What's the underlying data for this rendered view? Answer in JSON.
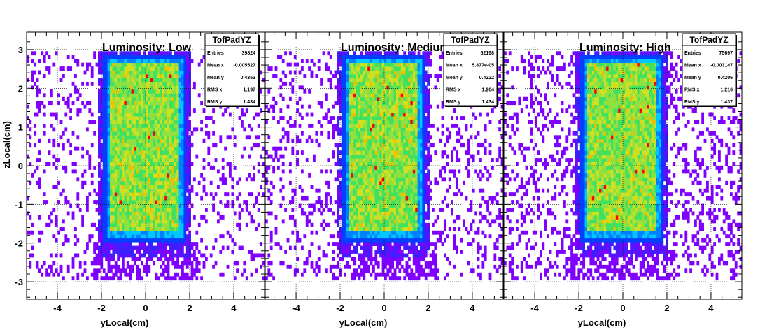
{
  "chart_data": [
    {
      "type": "heatmap",
      "title": "Luminosity: Low",
      "xlabel": "yLocal(cm)",
      "ylabel": "zLocal(cm)",
      "xlim": [
        -5.4,
        5.4
      ],
      "ylim": [
        -3.45,
        3.45
      ],
      "xticks": [
        "-4",
        "-2",
        "0",
        "2",
        "4"
      ],
      "yticks": [
        "3",
        "2",
        "1",
        "0",
        "-1",
        "-2",
        "-3"
      ],
      "grid": true,
      "core_region": {
        "y": [
          -1.9,
          1.8
        ],
        "z": [
          -2.0,
          2.9
        ]
      },
      "stats": {
        "name": "TofPadYZ",
        "rows": [
          {
            "label": "Entries",
            "value": "39824"
          },
          {
            "label": "Mean x",
            "value": "-0.005527"
          },
          {
            "label": "Mean y",
            "value": "0.4353"
          },
          {
            "label": "RMS x",
            "value": "1.197"
          },
          {
            "label": "RMS y",
            "value": "1.434"
          }
        ]
      }
    },
    {
      "type": "heatmap",
      "title": "Luminosity: Medium",
      "xlabel": "yLocal(cm)",
      "ylabel": "",
      "xlim": [
        -5.4,
        5.4
      ],
      "ylim": [
        -3.45,
        3.45
      ],
      "xticks": [
        "-4",
        "-2",
        "0",
        "2",
        "4"
      ],
      "yticks": [],
      "grid": true,
      "core_region": {
        "y": [
          -1.9,
          1.8
        ],
        "z": [
          -2.0,
          2.9
        ]
      },
      "stats": {
        "name": "TofPadYZ",
        "rows": [
          {
            "label": "Entries",
            "value": "52198"
          },
          {
            "label": "Mean x",
            "value": "5.877e-05"
          },
          {
            "label": "Mean y",
            "value": "0.4222"
          },
          {
            "label": "RMS x",
            "value": "1.204"
          },
          {
            "label": "RMS y",
            "value": "1.434"
          }
        ]
      }
    },
    {
      "type": "heatmap",
      "title": "Luminosity: High",
      "xlabel": "yLocal(cm)",
      "ylabel": "",
      "xlim": [
        -5.4,
        5.4
      ],
      "ylim": [
        -3.45,
        3.45
      ],
      "xticks": [
        "-4",
        "-2",
        "0",
        "2",
        "4"
      ],
      "yticks": [],
      "grid": true,
      "core_region": {
        "y": [
          -1.9,
          1.8
        ],
        "z": [
          -2.0,
          2.9
        ]
      },
      "stats": {
        "name": "TofPadYZ",
        "rows": [
          {
            "label": "Entries",
            "value": "75697"
          },
          {
            "label": "Mean x",
            "value": "-0.003147"
          },
          {
            "label": "Mean y",
            "value": "0.4206"
          },
          {
            "label": "RMS x",
            "value": "1.216"
          },
          {
            "label": "RMS y",
            "value": "1.437"
          }
        ]
      }
    }
  ],
  "colors": {
    "background": "#ffffff",
    "frame": "#000000",
    "grid": "#000000",
    "palette": [
      "#7f00ff",
      "#3f1fff",
      "#0040ff",
      "#0080ff",
      "#00c8ff",
      "#00e0c0",
      "#40e060",
      "#90e040",
      "#d0e020",
      "#f0c000",
      "#ff6000",
      "#ff0000"
    ]
  }
}
